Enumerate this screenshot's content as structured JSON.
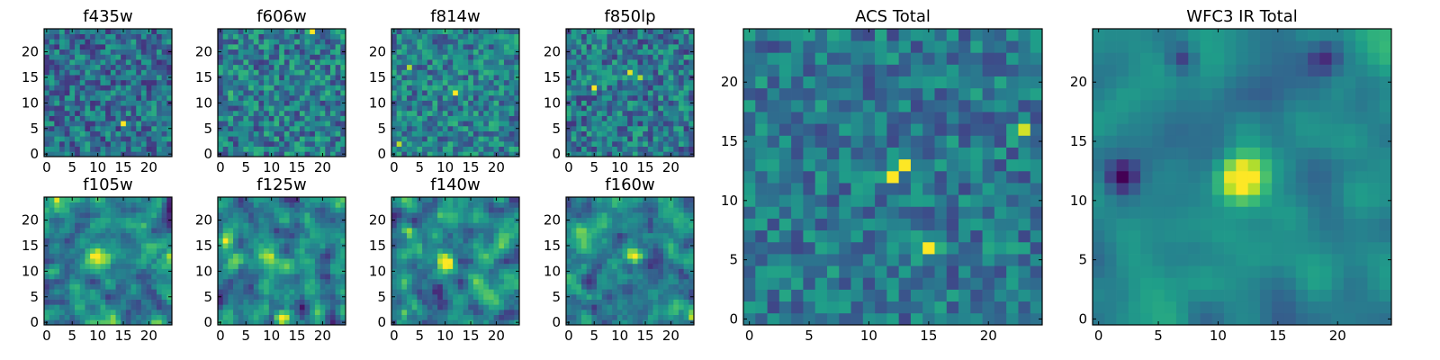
{
  "figure": {
    "background": "#ffffff"
  },
  "colormap": {
    "name": "viridis",
    "stops": [
      "#440154",
      "#482878",
      "#3e4989",
      "#31688e",
      "#26828e",
      "#1f9e89",
      "#35b779",
      "#6ece58",
      "#b5de2b",
      "#fde725"
    ]
  },
  "chart_data": [
    {
      "type": "heatmap",
      "title": "f435w",
      "size": 25,
      "xlim": [
        0,
        24
      ],
      "ylim": [
        0,
        24
      ],
      "xticks": [
        0,
        5,
        10,
        15,
        20
      ],
      "yticks": [
        0,
        5,
        10,
        15,
        20
      ],
      "seed": 11,
      "noise": 0.62,
      "smooth": 0,
      "base": 0.36,
      "peaks": [
        {
          "x": 15,
          "y": 6,
          "amp": 1.0,
          "sigma": 0.4
        }
      ]
    },
    {
      "type": "heatmap",
      "title": "f606w",
      "size": 25,
      "xlim": [
        0,
        24
      ],
      "ylim": [
        0,
        24
      ],
      "xticks": [
        0,
        5,
        10,
        15,
        20
      ],
      "yticks": [
        0,
        5,
        10,
        15,
        20
      ],
      "seed": 23,
      "noise": 0.66,
      "smooth": 0,
      "base": 0.42,
      "peaks": [
        {
          "x": 18,
          "y": 24,
          "amp": 0.8,
          "sigma": 0.4
        },
        {
          "x": 2,
          "y": 12,
          "amp": 0.5,
          "sigma": 0.4
        }
      ]
    },
    {
      "type": "heatmap",
      "title": "f814w",
      "size": 25,
      "xlim": [
        0,
        24
      ],
      "ylim": [
        0,
        24
      ],
      "xticks": [
        0,
        5,
        10,
        15,
        20
      ],
      "yticks": [
        0,
        5,
        10,
        15,
        20
      ],
      "seed": 37,
      "noise": 0.6,
      "smooth": 0,
      "base": 0.44,
      "peaks": [
        {
          "x": 12,
          "y": 12,
          "amp": 0.8,
          "sigma": 0.45
        },
        {
          "x": 3,
          "y": 17,
          "amp": 0.6,
          "sigma": 0.4
        },
        {
          "x": 1,
          "y": 2,
          "amp": 0.55,
          "sigma": 0.4
        }
      ]
    },
    {
      "type": "heatmap",
      "title": "f850lp",
      "size": 25,
      "xlim": [
        0,
        24
      ],
      "ylim": [
        0,
        24
      ],
      "xticks": [
        0,
        5,
        10,
        15,
        20
      ],
      "yticks": [
        0,
        5,
        10,
        15,
        20
      ],
      "seed": 41,
      "noise": 0.64,
      "smooth": 0,
      "base": 0.4,
      "peaks": [
        {
          "x": 5,
          "y": 13,
          "amp": 0.75,
          "sigma": 0.4
        },
        {
          "x": 14,
          "y": 15,
          "amp": 0.7,
          "sigma": 0.4
        },
        {
          "x": 12,
          "y": 16,
          "amp": 0.45,
          "sigma": 0.5
        }
      ]
    },
    {
      "type": "heatmap",
      "title": "f105w",
      "size": 25,
      "xlim": [
        0,
        24
      ],
      "ylim": [
        0,
        24
      ],
      "xticks": [
        0,
        5,
        10,
        15,
        20
      ],
      "yticks": [
        0,
        5,
        10,
        15,
        20
      ],
      "seed": 53,
      "noise": 0.55,
      "smooth": 1,
      "base": 0.45,
      "peaks": [
        {
          "x": 10,
          "y": 13,
          "amp": 0.6,
          "sigma": 1.1
        },
        {
          "x": 2,
          "y": 24,
          "amp": 0.4,
          "sigma": 0.6
        },
        {
          "x": 24,
          "y": 13,
          "amp": 0.4,
          "sigma": 0.6
        }
      ]
    },
    {
      "type": "heatmap",
      "title": "f125w",
      "size": 25,
      "xlim": [
        0,
        24
      ],
      "ylim": [
        0,
        24
      ],
      "xticks": [
        0,
        5,
        10,
        15,
        20
      ],
      "yticks": [
        0,
        5,
        10,
        15,
        20
      ],
      "seed": 67,
      "noise": 0.55,
      "smooth": 1,
      "base": 0.45,
      "peaks": [
        {
          "x": 1,
          "y": 16,
          "amp": 0.55,
          "sigma": 0.8
        },
        {
          "x": 12,
          "y": 1,
          "amp": 0.55,
          "sigma": 0.8
        },
        {
          "x": 10,
          "y": 13,
          "amp": 0.3,
          "sigma": 1.2
        }
      ]
    },
    {
      "type": "heatmap",
      "title": "f140w",
      "size": 25,
      "xlim": [
        0,
        24
      ],
      "ylim": [
        0,
        24
      ],
      "xticks": [
        0,
        5,
        10,
        15,
        20
      ],
      "yticks": [
        0,
        5,
        10,
        15,
        20
      ],
      "seed": 79,
      "noise": 0.58,
      "smooth": 1,
      "base": 0.45,
      "peaks": [
        {
          "x": 10,
          "y": 12,
          "amp": 0.6,
          "sigma": 1.2
        },
        {
          "x": 3,
          "y": 18,
          "amp": 0.4,
          "sigma": 0.8
        },
        {
          "x": 2,
          "y": 2,
          "amp": 0.45,
          "sigma": 0.6
        }
      ]
    },
    {
      "type": "heatmap",
      "title": "f160w",
      "size": 25,
      "xlim": [
        0,
        24
      ],
      "ylim": [
        0,
        24
      ],
      "xticks": [
        0,
        5,
        10,
        15,
        20
      ],
      "yticks": [
        0,
        5,
        10,
        15,
        20
      ],
      "seed": 83,
      "noise": 0.52,
      "smooth": 1,
      "base": 0.44,
      "peaks": [
        {
          "x": 13,
          "y": 13,
          "amp": 0.6,
          "sigma": 1.0
        },
        {
          "x": 24,
          "y": 1,
          "amp": 0.45,
          "sigma": 0.6
        }
      ]
    },
    {
      "type": "heatmap",
      "title": "ACS Total",
      "size": 25,
      "xlim": [
        0,
        24
      ],
      "ylim": [
        0,
        24
      ],
      "xticks": [
        0,
        5,
        10,
        15,
        20
      ],
      "yticks": [
        0,
        5,
        10,
        15,
        20
      ],
      "seed": 97,
      "noise": 0.5,
      "smooth": 0,
      "base": 0.4,
      "peaks": [
        {
          "x": 12,
          "y": 12,
          "amp": 1.0,
          "sigma": 0.4
        },
        {
          "x": 15,
          "y": 6,
          "amp": 0.95,
          "sigma": 0.4
        },
        {
          "x": 13,
          "y": 13,
          "amp": 0.55,
          "sigma": 0.4
        },
        {
          "x": 23,
          "y": 16,
          "amp": 0.45,
          "sigma": 0.4
        }
      ]
    },
    {
      "type": "heatmap",
      "title": "WFC3 IR Total",
      "size": 25,
      "xlim": [
        0,
        24
      ],
      "ylim": [
        0,
        24
      ],
      "xticks": [
        0,
        5,
        10,
        15,
        20
      ],
      "yticks": [
        0,
        5,
        10,
        15,
        20
      ],
      "seed": 101,
      "noise": 0.28,
      "smooth": 2,
      "base": 0.46,
      "peaks": [
        {
          "x": 12,
          "y": 12,
          "amp": 0.55,
          "sigma": 1.3
        },
        {
          "x": 2,
          "y": 12,
          "amp": -0.45,
          "sigma": 0.9
        },
        {
          "x": 19,
          "y": 22,
          "amp": -0.35,
          "sigma": 1.0
        },
        {
          "x": 7,
          "y": 22,
          "amp": -0.3,
          "sigma": 0.8
        }
      ]
    }
  ]
}
